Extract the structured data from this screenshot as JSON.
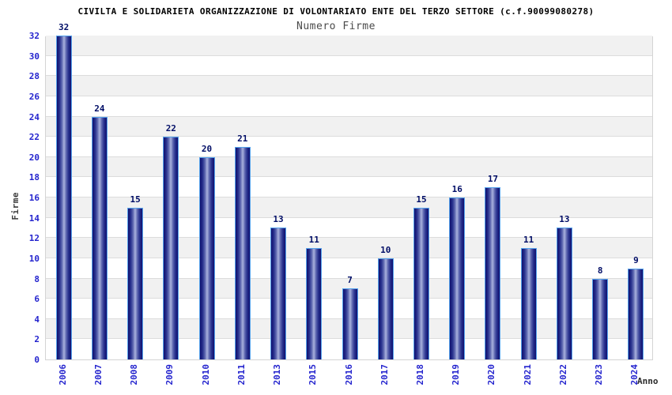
{
  "header": {
    "title": "CIVILTA E SOLIDARIETA ORGANIZZAZIONE DI VOLONTARIATO ENTE DEL TERZO SETTORE (c.f.90099080278)",
    "subtitle": "Numero Firme"
  },
  "chart_data": {
    "type": "bar",
    "title": "Numero Firme",
    "categories": [
      "2006",
      "2007",
      "2008",
      "2009",
      "2010",
      "2011",
      "2013",
      "2015",
      "2016",
      "2017",
      "2018",
      "2019",
      "2020",
      "2021",
      "2022",
      "2023",
      "2024"
    ],
    "values": [
      32,
      24,
      15,
      22,
      20,
      21,
      13,
      11,
      7,
      10,
      15,
      16,
      17,
      11,
      13,
      8,
      9
    ],
    "xlabel": "Anno",
    "ylabel": "Firme",
    "ylim": [
      0,
      32
    ],
    "yticks": [
      0,
      2,
      4,
      6,
      8,
      10,
      12,
      14,
      16,
      18,
      20,
      22,
      24,
      26,
      28,
      30,
      32
    ],
    "grid": "horizontal-bands",
    "legend": "none",
    "value_labels": "above-bars"
  },
  "colors": {
    "bar_edge": "#10106e",
    "bar_center": "#a9b1dd",
    "bar_outline": "#55a2ec",
    "value_label": "#000d66",
    "tick_label": "#2424ce",
    "band_gray": "#f1f1f1",
    "band_white": "#ffffff",
    "gridline": "#dcdcdc",
    "plot_border": "#d4d4d4",
    "title": "#000000",
    "subtitle": "#4a4a4a",
    "axis_label": "#3c3c3c"
  }
}
